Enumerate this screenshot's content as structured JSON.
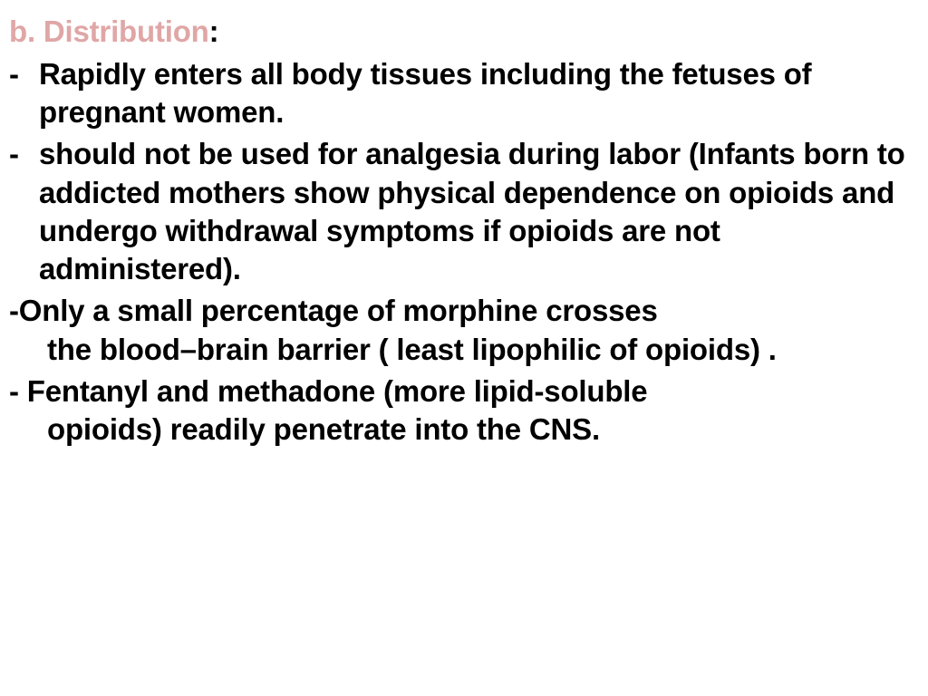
{
  "heading": {
    "lead": "b. Distribution",
    "colon": ":",
    "lead_color": "#e0a6a6",
    "colon_color": "#000000",
    "fontsize": 33
  },
  "bullets": [
    {
      "dash": "-",
      "text": "Rapidly enters all body tissues including the fetuses of pregnant women.",
      "style": "indent"
    },
    {
      "dash": "-",
      "text": " should not be used for analgesia during labor  (Infants born to addicted mothers show physical dependence on opioids and undergo withdrawal symptoms if opioids are not administered).",
      "style": "indent"
    },
    {
      "first": "-Only a small percentage of morphine crosses",
      "rest": "the blood–brain barrier ( least lipophilic of opioids) .",
      "style": "noindent"
    },
    {
      "first": "- Fentanyl and methadone (more lipid-soluble",
      "rest": "opioids) readily penetrate into the CNS.",
      "style": "noindent"
    }
  ],
  "body_color": "#000000",
  "background_color": "#ffffff",
  "body_fontsize": 33
}
